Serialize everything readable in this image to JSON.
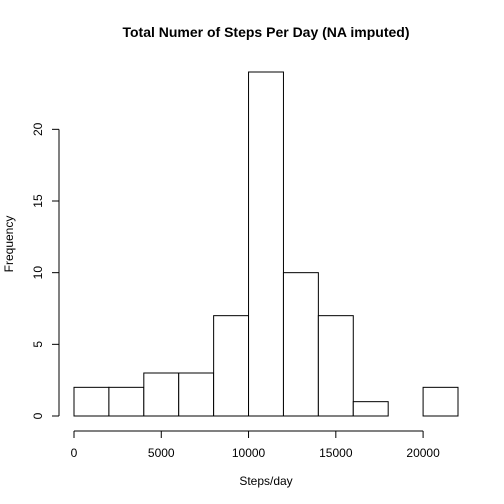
{
  "chart_data": {
    "type": "bar",
    "title": "Total Numer of Steps Per Day (NA imputed)",
    "xlabel": "Steps/day",
    "ylabel": "Frequency",
    "bins": [
      {
        "start": 0,
        "end": 2000,
        "count": 2
      },
      {
        "start": 2000,
        "end": 4000,
        "count": 2
      },
      {
        "start": 4000,
        "end": 6000,
        "count": 3
      },
      {
        "start": 6000,
        "end": 8000,
        "count": 3
      },
      {
        "start": 8000,
        "end": 10000,
        "count": 7
      },
      {
        "start": 10000,
        "end": 12000,
        "count": 24
      },
      {
        "start": 12000,
        "end": 14000,
        "count": 10
      },
      {
        "start": 14000,
        "end": 16000,
        "count": 7
      },
      {
        "start": 16000,
        "end": 18000,
        "count": 1
      },
      {
        "start": 18000,
        "end": 20000,
        "count": 0
      },
      {
        "start": 20000,
        "end": 22000,
        "count": 2
      }
    ],
    "xlim": [
      0,
      22000
    ],
    "ylim": [
      0,
      24
    ],
    "x_ticks": [
      0,
      5000,
      10000,
      15000,
      20000
    ],
    "y_ticks": [
      0,
      5,
      10,
      15,
      20
    ],
    "grid": false
  }
}
